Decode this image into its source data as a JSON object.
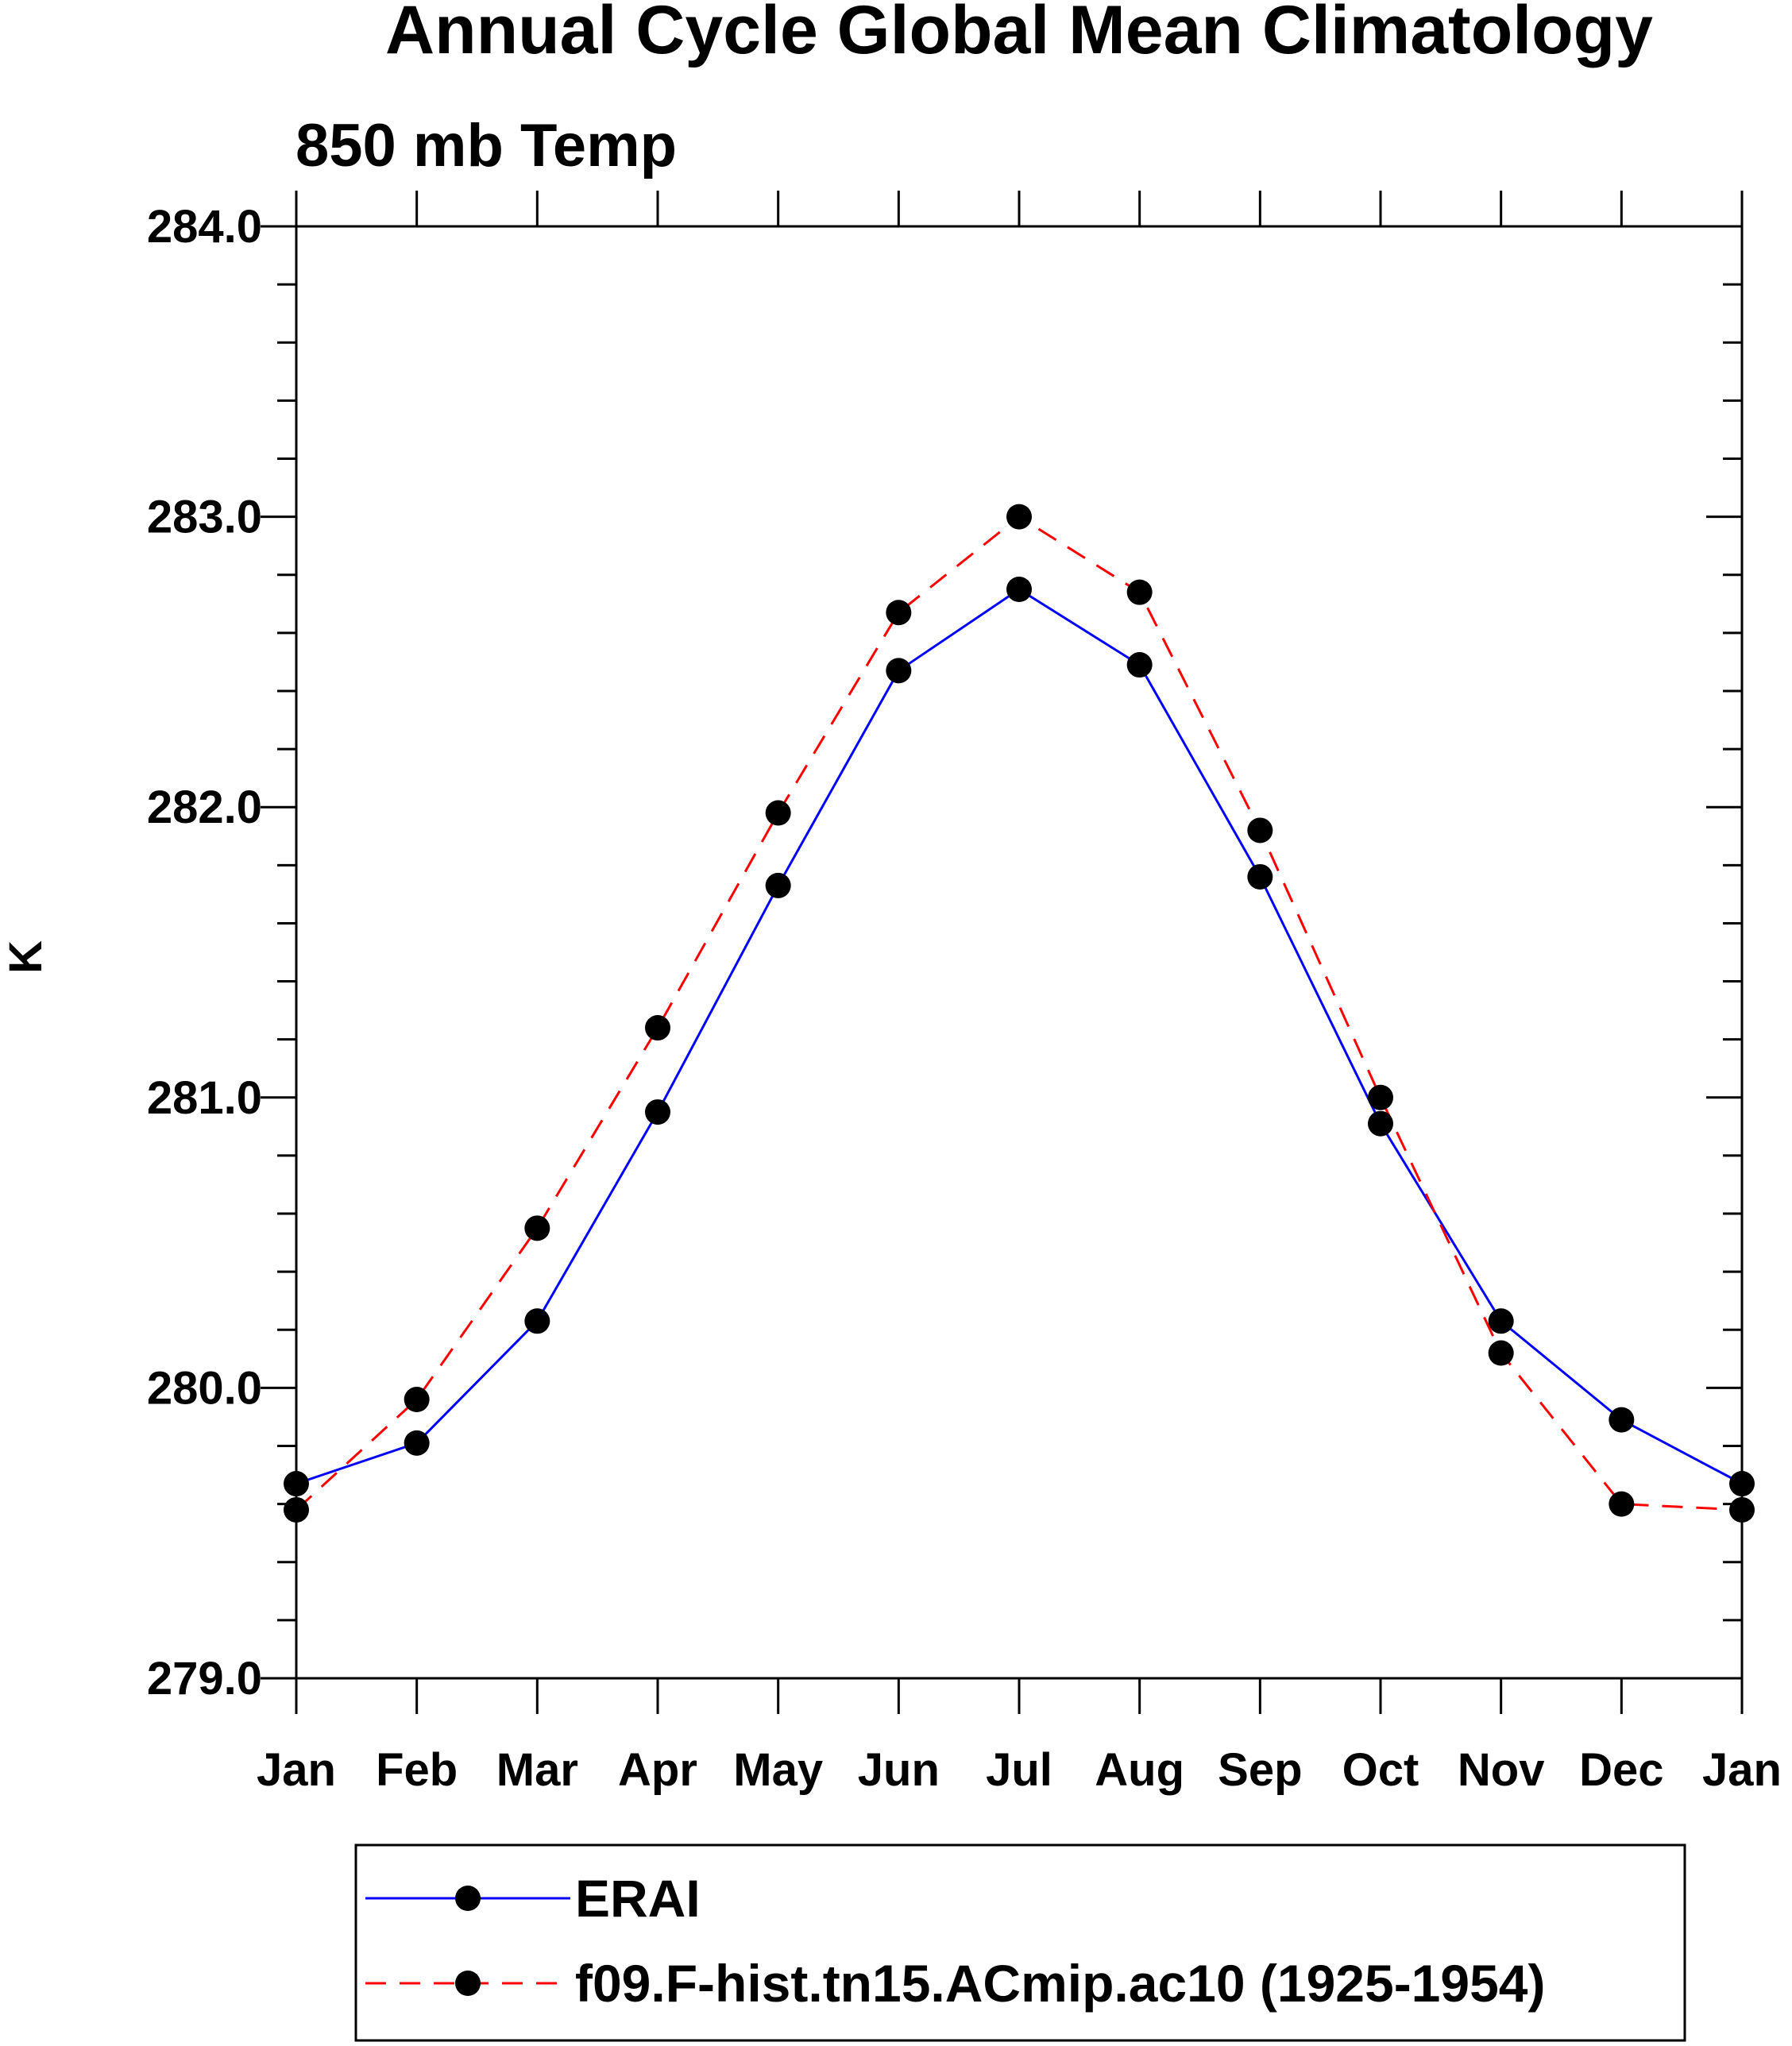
{
  "chart_data": {
    "type": "line",
    "title": "Annual Cycle Global Mean Climatology",
    "subtitle": "850 mb Temp",
    "xlabel": "",
    "ylabel": "K",
    "categories": [
      "Jan",
      "Feb",
      "Mar",
      "Apr",
      "May",
      "Jun",
      "Jul",
      "Aug",
      "Sep",
      "Oct",
      "Nov",
      "Dec",
      "Jan"
    ],
    "ylim": [
      279.0,
      284.0
    ],
    "yticks": [
      "279.0",
      "280.0",
      "281.0",
      "282.0",
      "283.0",
      "284.0"
    ],
    "grid": false,
    "legend_position": "bottom",
    "series": [
      {
        "name": "ERAI",
        "color": "#0000ff",
        "line_style": "solid",
        "marker": "filled-circle",
        "values": [
          279.67,
          279.81,
          280.23,
          280.95,
          281.73,
          282.47,
          282.75,
          282.49,
          281.76,
          280.91,
          280.23,
          279.89,
          279.67
        ]
      },
      {
        "name": "f09.F-hist.tn15.ACmip.ac10 (1925-1954)",
        "color": "#ff0000",
        "line_style": "dashed",
        "marker": "filled-circle",
        "values": [
          279.58,
          279.96,
          280.55,
          281.24,
          281.98,
          282.67,
          283.0,
          282.74,
          281.92,
          281.0,
          280.12,
          279.6,
          279.58
        ]
      }
    ]
  }
}
